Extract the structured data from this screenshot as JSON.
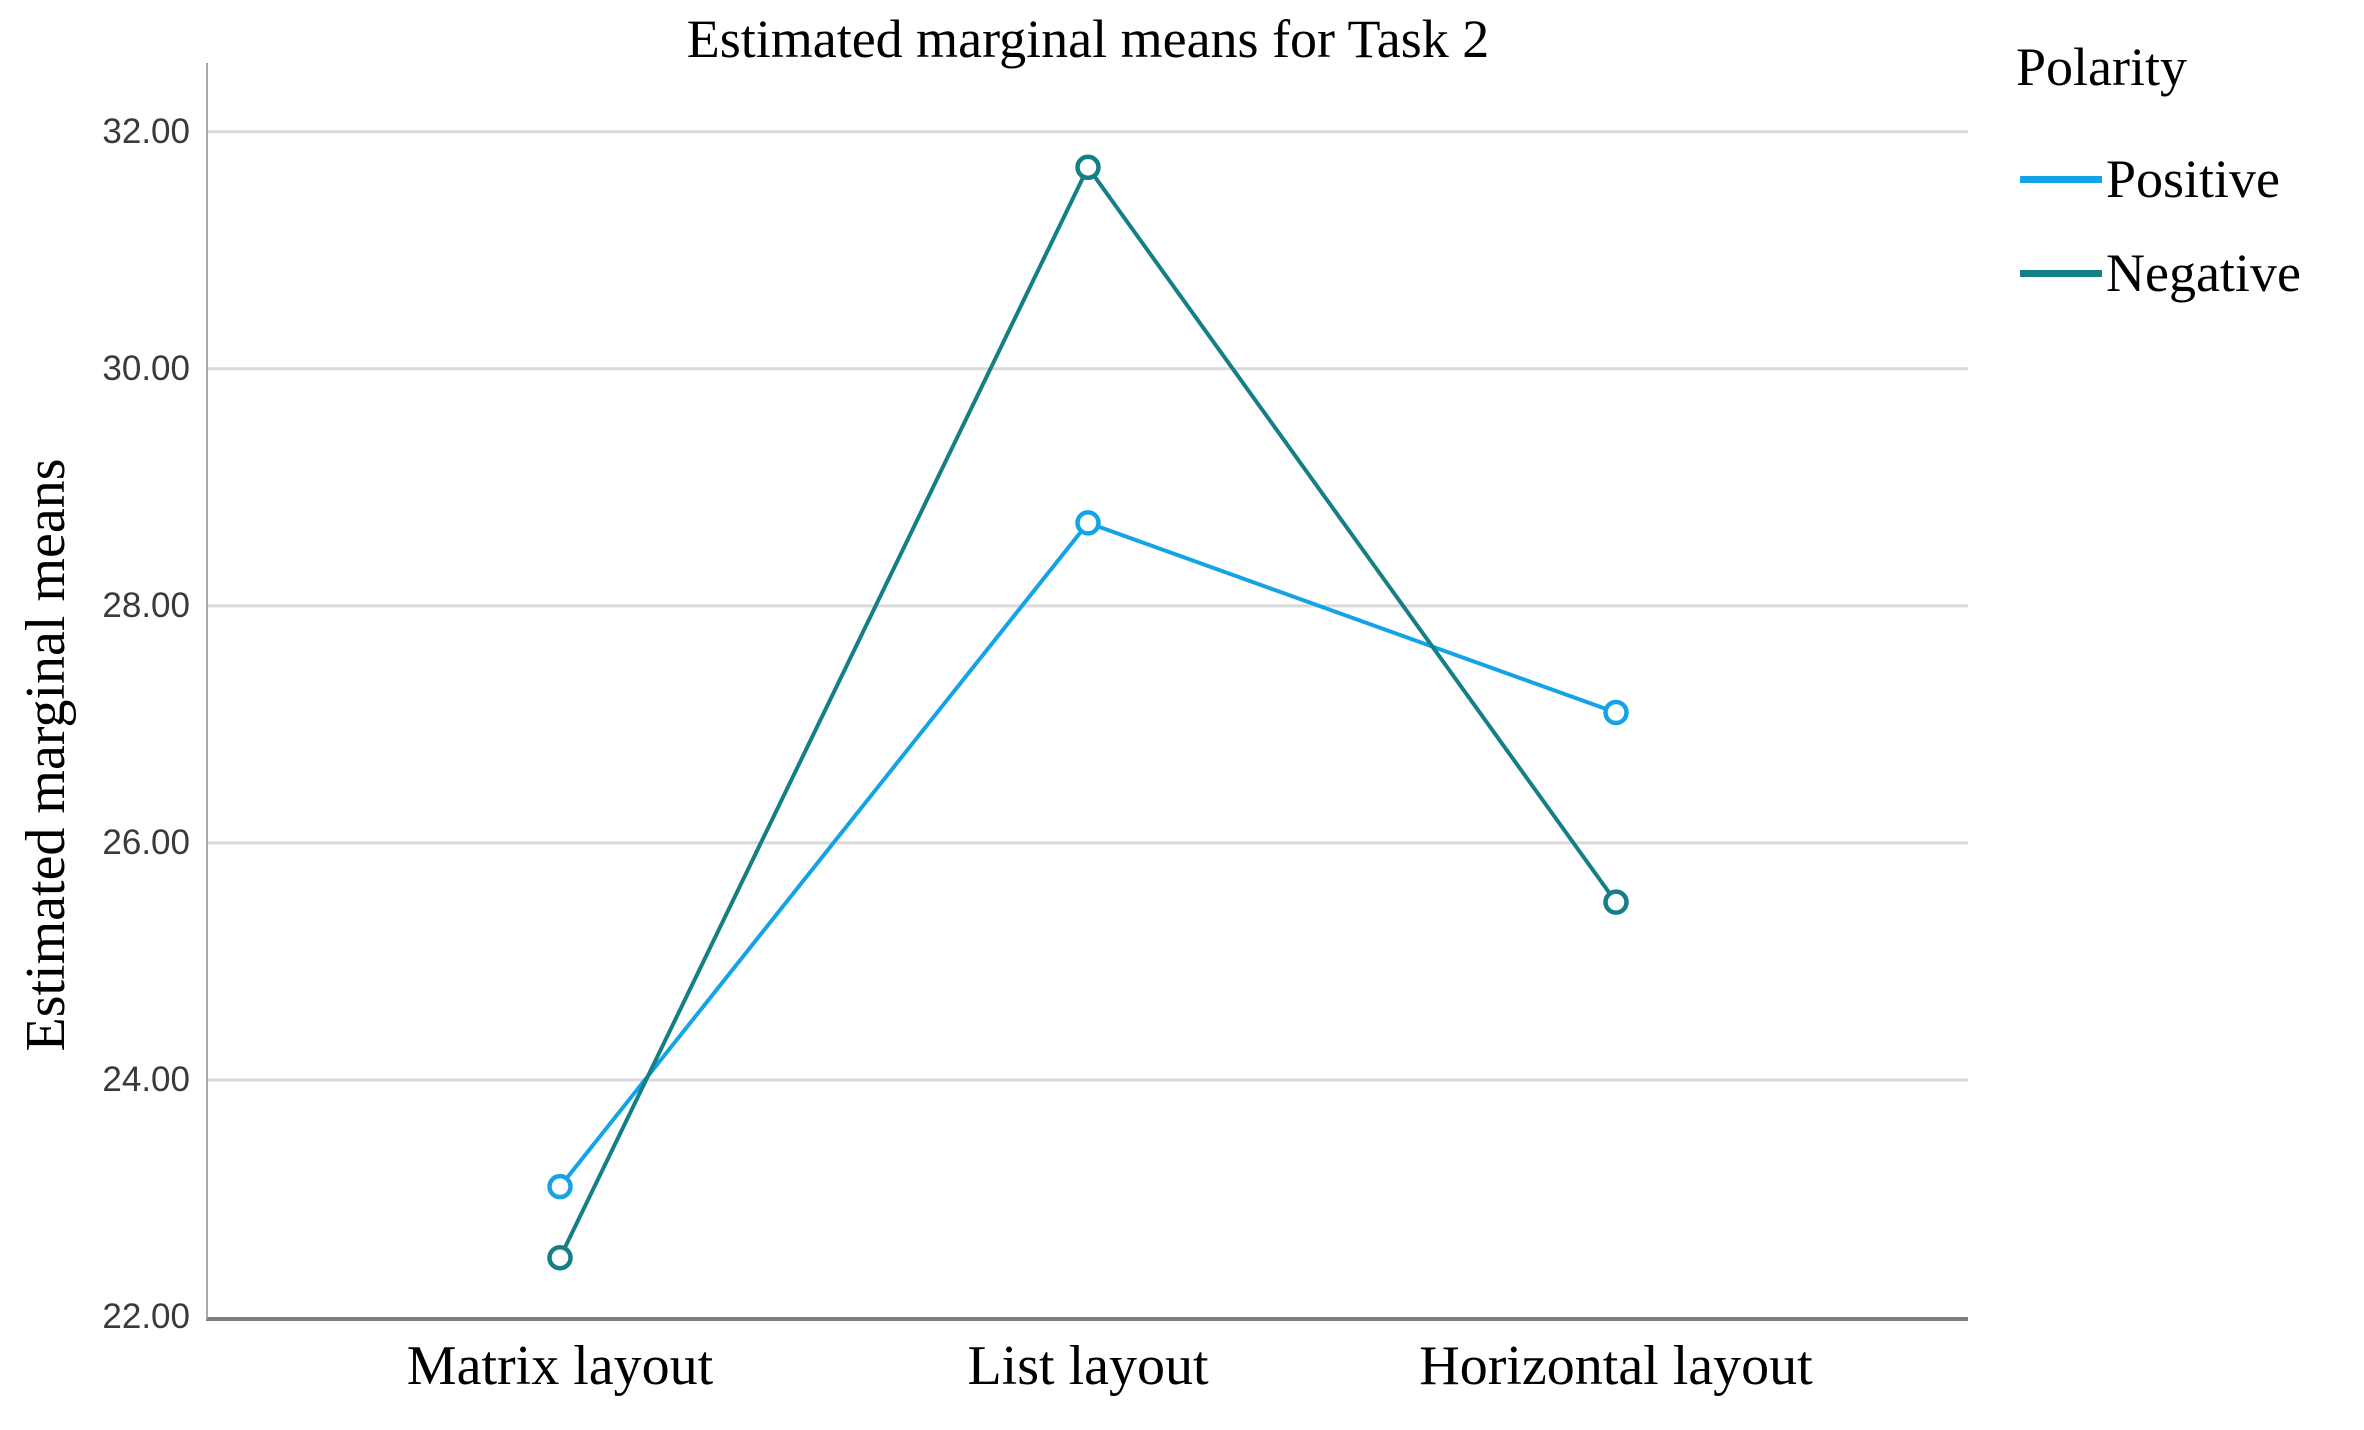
{
  "title": "Estimated marginal means for Task 2",
  "y_axis": {
    "label": "Estimated marginal means",
    "ticks": [
      {
        "label": "32.00",
        "value": 32
      },
      {
        "label": "30.00",
        "value": 30
      },
      {
        "label": "28.00",
        "value": 28
      },
      {
        "label": "26.00",
        "value": 26
      },
      {
        "label": "24.00",
        "value": 24
      },
      {
        "label": "22.00",
        "value": 22
      }
    ]
  },
  "x_axis": {
    "categories": [
      "Matrix layout",
      "List layout",
      "Horizontal layout"
    ]
  },
  "legend": {
    "title": "Polarity",
    "entries": [
      {
        "label": "Positive",
        "color": "#15A3E8"
      },
      {
        "label": "Negative",
        "color": "#147F84"
      }
    ]
  },
  "chart_data": {
    "type": "line",
    "title": "Estimated marginal means for Task 2",
    "xlabel": "",
    "ylabel": "Estimated marginal means",
    "categories": [
      "Matrix layout",
      "List layout",
      "Horizontal layout"
    ],
    "series": [
      {
        "name": "Positive",
        "color": "#15A3E8",
        "values": [
          23.1,
          28.7,
          27.1
        ]
      },
      {
        "name": "Negative",
        "color": "#147F84",
        "values": [
          22.5,
          31.7,
          25.5
        ]
      }
    ],
    "ylim": [
      22,
      32.58
    ],
    "yticks": [
      22,
      24,
      26,
      28,
      30,
      32
    ],
    "grid": true,
    "marker": "open-circle",
    "legend_title": "Polarity",
    "legend_position": "top-right"
  },
  "colors": {
    "grid": "#D9D9D9",
    "y_axis_line": "#A8A8A8",
    "x_axis_line": "#7F7F7F",
    "tick_text": "#3A3A3A",
    "text": "#000000",
    "background": "#FFFFFF"
  }
}
